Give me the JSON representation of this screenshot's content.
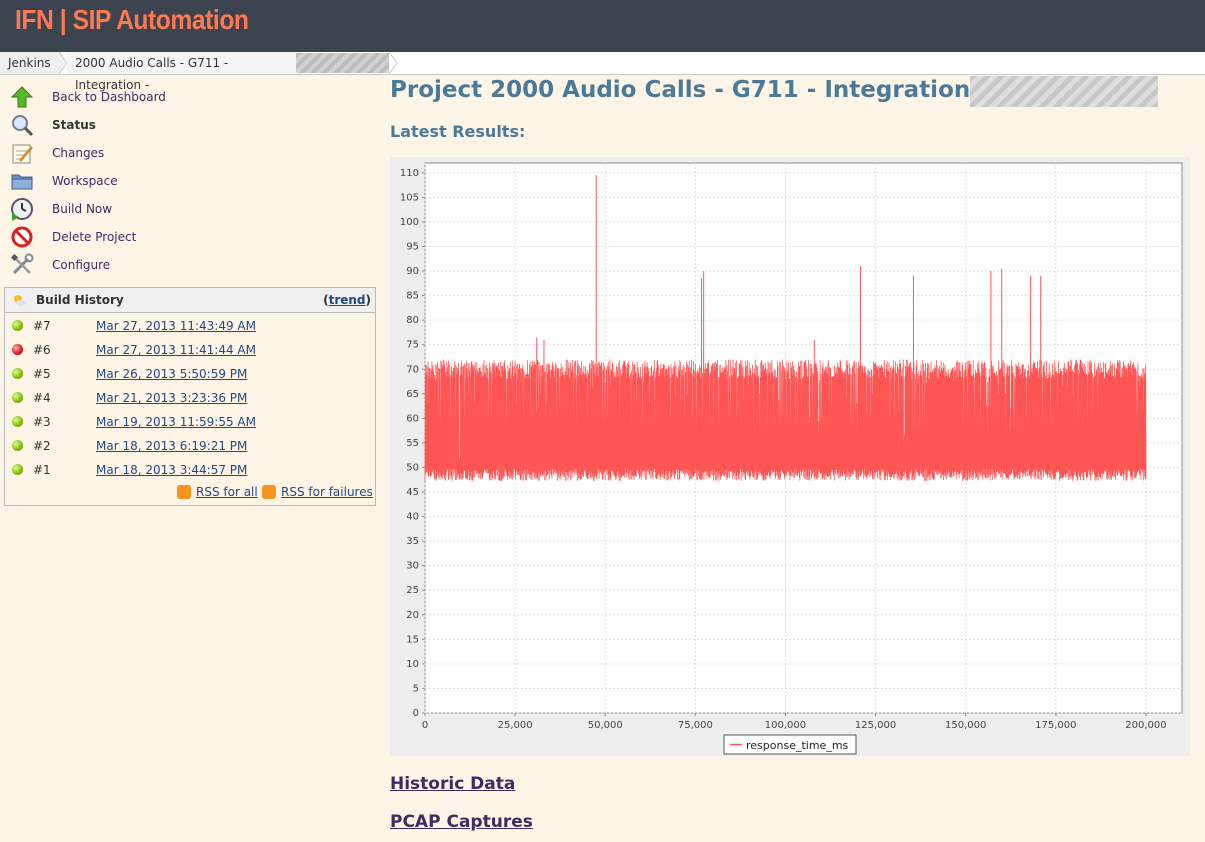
{
  "header": {
    "app_title": "IFN | SIP Automation"
  },
  "breadcrumb": {
    "items": [
      "Jenkins",
      "2000 Audio Calls - G711 - Integration -"
    ]
  },
  "sidebar": {
    "tasks": [
      {
        "label": "Back to Dashboard",
        "icon": "up-arrow-icon"
      },
      {
        "label": "Status",
        "icon": "search-icon"
      },
      {
        "label": "Changes",
        "icon": "notepad-icon"
      },
      {
        "label": "Workspace",
        "icon": "folder-icon"
      },
      {
        "label": "Build Now",
        "icon": "clock-icon"
      },
      {
        "label": "Delete Project",
        "icon": "no-entry-icon"
      },
      {
        "label": "Configure",
        "icon": "tools-icon"
      }
    ]
  },
  "build_history": {
    "title": "Build History",
    "trend_label": "trend",
    "builds": [
      {
        "number": "#7",
        "date": "Mar 27, 2013 11:43:49 AM",
        "status": "success"
      },
      {
        "number": "#6",
        "date": "Mar 27, 2013 11:41:44 AM",
        "status": "failure"
      },
      {
        "number": "#5",
        "date": "Mar 26, 2013 5:50:59 PM",
        "status": "success"
      },
      {
        "number": "#4",
        "date": "Mar 21, 2013 3:23:36 PM",
        "status": "success"
      },
      {
        "number": "#3",
        "date": "Mar 19, 2013 11:59:55 AM",
        "status": "success"
      },
      {
        "number": "#2",
        "date": "Mar 18, 2013 6:19:21 PM",
        "status": "success"
      },
      {
        "number": "#1",
        "date": "Mar 18, 2013 3:44:57 PM",
        "status": "success"
      }
    ],
    "rss_all": "RSS for all",
    "rss_failures": "RSS for failures"
  },
  "main": {
    "title": "Project 2000 Audio Calls - G711 - Integration -",
    "latest_results": "Latest Results:",
    "historic_data": "Historic Data",
    "pcap_captures": "PCAP Captures"
  },
  "chart_data": {
    "type": "line",
    "series": [
      {
        "name": "response_time_ms",
        "color": "#ff5555",
        "band_low": 48,
        "band_high": 70,
        "x_end": 200000,
        "spikes": [
          {
            "x": 31000,
            "y": 76.5
          },
          {
            "x": 33000,
            "y": 76
          },
          {
            "x": 47500,
            "y": 109.5
          },
          {
            "x": 76700,
            "y": 88.5
          },
          {
            "x": 77300,
            "y": 90
          },
          {
            "x": 108000,
            "y": 76
          },
          {
            "x": 120800,
            "y": 91
          },
          {
            "x": 135500,
            "y": 89
          },
          {
            "x": 157000,
            "y": 90
          },
          {
            "x": 160000,
            "y": 90.5
          },
          {
            "x": 168000,
            "y": 89
          },
          {
            "x": 170800,
            "y": 89
          }
        ]
      }
    ],
    "xlim": [
      0,
      210000
    ],
    "ylim": [
      0,
      112
    ],
    "x_ticks": [
      0,
      25000,
      50000,
      75000,
      100000,
      125000,
      150000,
      175000,
      200000
    ],
    "x_tick_labels": [
      "0",
      "25,000",
      "50,000",
      "75,000",
      "100,000",
      "125,000",
      "150,000",
      "175,000",
      "200,000"
    ],
    "y_ticks": [
      0,
      5,
      10,
      15,
      20,
      25,
      30,
      35,
      40,
      45,
      50,
      55,
      60,
      65,
      70,
      75,
      80,
      85,
      90,
      95,
      100,
      105,
      110
    ],
    "grid": true,
    "legend": "bottom-center"
  }
}
